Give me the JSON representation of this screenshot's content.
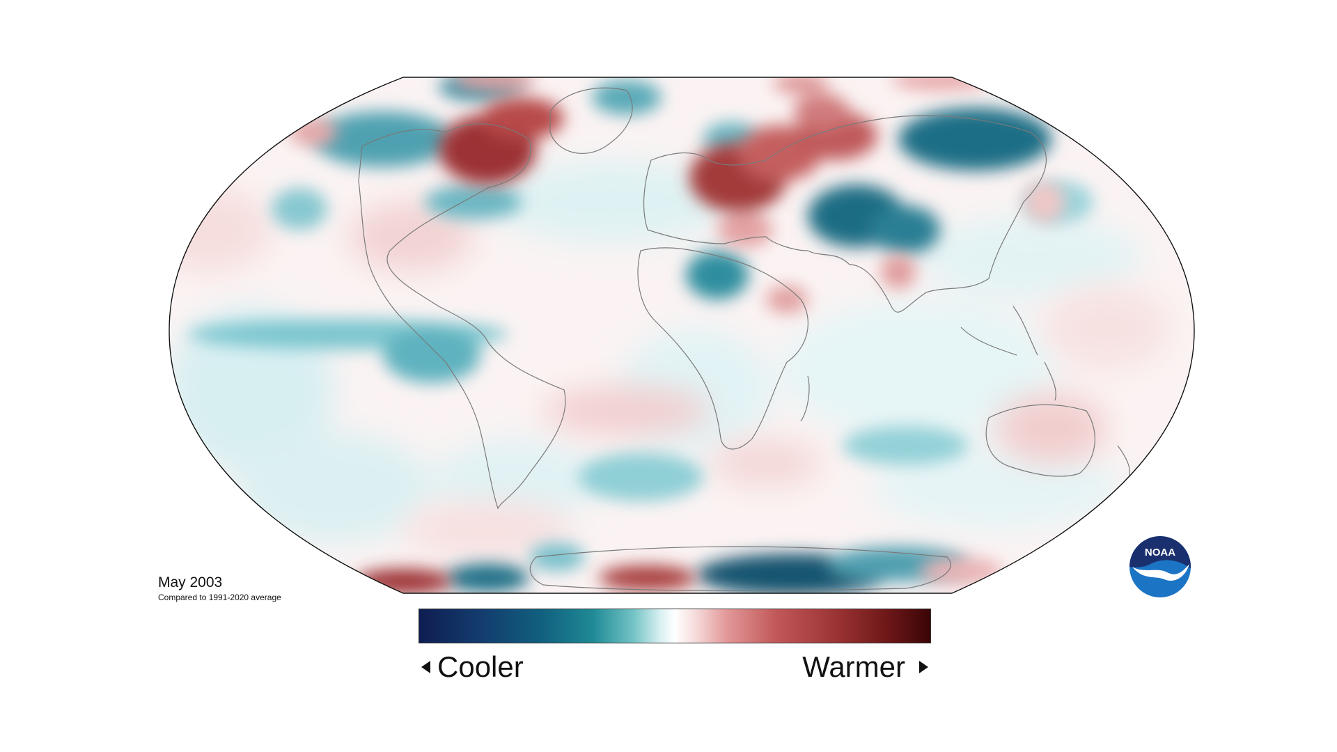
{
  "map": {
    "title": "May 2003",
    "subtitle": "Compared to 1991-2020 average",
    "projection": "Robinson",
    "colors": {
      "cool_strong": "#0f4f6e",
      "cool": "#2b8ea0",
      "cool_light": "#bfe6ea",
      "neutral": "#ffffff",
      "warm_light": "#f4cfcf",
      "warm": "#c75a5b",
      "warm_strong": "#8f2426",
      "coastline": "#777777",
      "outline": "#111111"
    }
  },
  "legend": {
    "left_label": "Cooler",
    "right_label": "Warmer",
    "left_icon": "triangle-left-icon",
    "right_icon": "triangle-right-icon"
  },
  "logo": {
    "text": "NOAA",
    "icon": "noaa-logo",
    "colors": {
      "top": "#1a2f6e",
      "bottom": "#1b74c4",
      "bird": "#ffffff"
    }
  }
}
